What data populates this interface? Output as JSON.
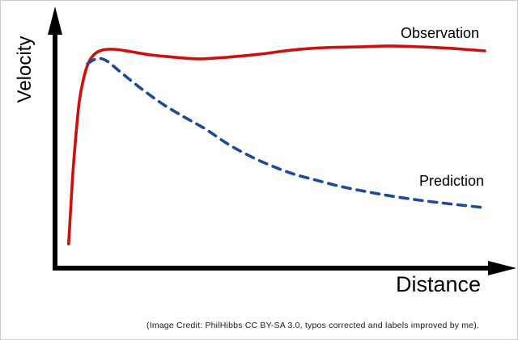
{
  "page": {
    "background": "#ffffff",
    "border_color": "#cccccc",
    "caption": "(Image Credit: PhilHibbs CC BY-SA 3.0, typos corrected and labels improved by me)."
  },
  "chart": {
    "y_axis_label": "Velocity",
    "x_axis_label": "Distance",
    "axis_color": "#000000",
    "observation_label": "Observation",
    "prediction_label": "Prediction"
  },
  "chart_data": {
    "type": "line",
    "title": "",
    "xlabel": "Distance",
    "ylabel": "Velocity",
    "x_range": [
      0,
      10
    ],
    "y_range": [
      0,
      1
    ],
    "axis_tick_labels": "none",
    "grid": false,
    "legend_position": "inline-annotations",
    "x_units": "arbitrary distance units (unlabeled axis)",
    "y_units": "relative velocity (unlabeled axis)",
    "series": [
      {
        "name": "Observation",
        "line_style": "solid",
        "color": "#cf0e0e",
        "x": [
          0.33,
          0.37,
          0.42,
          0.49,
          0.56,
          0.65,
          0.75,
          0.89,
          1.07,
          1.32,
          1.67,
          2.11,
          2.63,
          3.16,
          3.77,
          4.47,
          5.18,
          5.88,
          6.58,
          7.28,
          7.98,
          8.68,
          9.35
        ],
        "y": [
          0.1,
          0.234,
          0.397,
          0.569,
          0.707,
          0.803,
          0.869,
          0.91,
          0.928,
          0.931,
          0.921,
          0.907,
          0.897,
          0.89,
          0.897,
          0.91,
          0.928,
          0.938,
          0.941,
          0.945,
          0.941,
          0.934,
          0.924
        ]
      },
      {
        "name": "Prediction",
        "line_style": "dashed",
        "color": "#1e4a97",
        "x": [
          0.74,
          0.93,
          1.14,
          1.49,
          1.93,
          2.37,
          2.84,
          3.3,
          3.77,
          4.25,
          4.72,
          5.18,
          5.7,
          6.23,
          6.84,
          7.46,
          8.07,
          8.68,
          9.33
        ],
        "y": [
          0.869,
          0.89,
          0.883,
          0.828,
          0.759,
          0.697,
          0.641,
          0.59,
          0.528,
          0.476,
          0.434,
          0.4,
          0.372,
          0.345,
          0.321,
          0.3,
          0.283,
          0.269,
          0.255
        ]
      }
    ]
  }
}
